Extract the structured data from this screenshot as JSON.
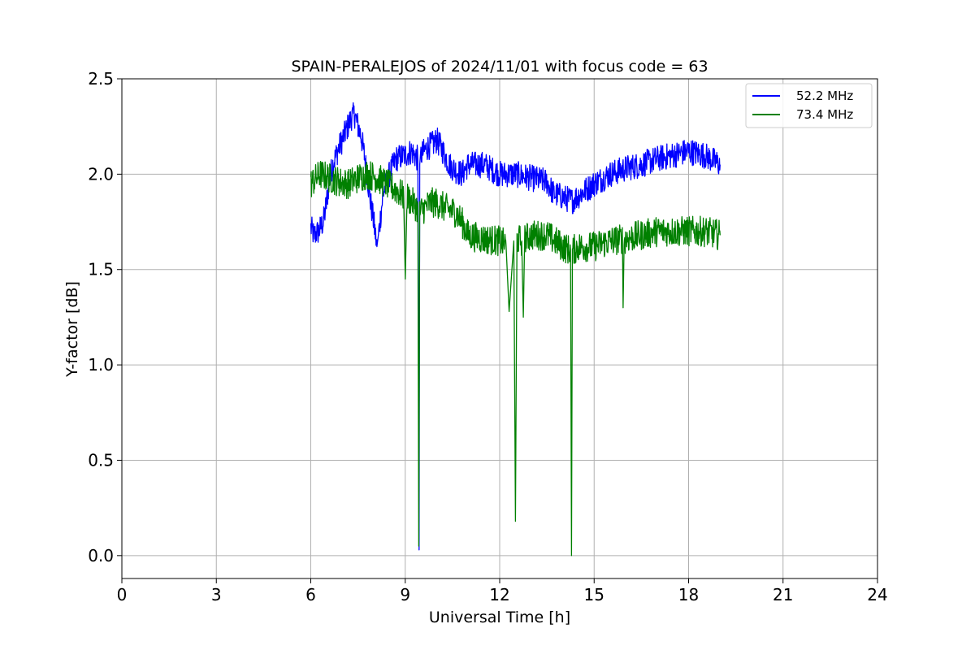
{
  "chart_data": {
    "type": "line",
    "title": "SPAIN-PERALEJOS of 2024/11/01 with focus code = 63",
    "xlabel": "Universal Time [h]",
    "ylabel": "Y-factor [dB]",
    "xlim": [
      0,
      24
    ],
    "ylim": [
      -0.12,
      2.5
    ],
    "xticks": [
      0,
      3,
      6,
      9,
      12,
      15,
      18,
      21,
      24
    ],
    "xtick_labels": [
      "0",
      "3",
      "6",
      "9",
      "12",
      "15",
      "18",
      "21",
      "24"
    ],
    "yticks": [
      0.0,
      0.5,
      1.0,
      1.5,
      2.0,
      2.5
    ],
    "ytick_labels": [
      "0.0",
      "0.5",
      "1.0",
      "1.5",
      "2.0",
      "2.5"
    ],
    "grid": true,
    "legend_position": "top-right",
    "series": [
      {
        "name": "52.2 MHz",
        "color": "#0000ff",
        "noise": 0.07,
        "x": [
          6.0,
          6.1,
          6.25,
          6.4,
          6.5,
          6.6,
          6.7,
          6.85,
          7.0,
          7.1,
          7.2,
          7.3,
          7.4,
          7.5,
          7.6,
          7.7,
          7.8,
          7.9,
          8.0,
          8.1,
          8.15,
          8.3,
          8.5,
          8.7,
          9.0,
          9.2,
          9.4,
          9.44,
          9.46,
          9.5,
          9.7,
          9.9,
          10.0,
          10.2,
          10.4,
          10.6,
          10.8,
          11.0,
          11.5,
          12.0,
          12.5,
          13.0,
          13.5,
          13.7,
          14.0,
          14.3,
          14.6,
          15.0,
          15.5,
          16.0,
          16.5,
          17.0,
          17.5,
          18.0,
          18.5,
          19.0
        ],
        "y": [
          1.72,
          1.68,
          1.7,
          1.75,
          1.85,
          1.98,
          2.05,
          2.12,
          2.18,
          2.22,
          2.26,
          2.3,
          2.31,
          2.25,
          2.2,
          2.1,
          1.98,
          1.85,
          1.75,
          1.62,
          1.68,
          1.9,
          2.0,
          2.08,
          2.1,
          2.12,
          2.08,
          0.03,
          2.05,
          2.1,
          2.14,
          2.16,
          2.18,
          2.12,
          2.05,
          2.02,
          2.0,
          2.05,
          2.05,
          2.0,
          2.0,
          1.98,
          1.96,
          1.9,
          1.88,
          1.86,
          1.9,
          1.95,
          2.0,
          2.03,
          2.05,
          2.08,
          2.1,
          2.12,
          2.1,
          2.05
        ]
      },
      {
        "name": "73.4 MHz",
        "color": "#008000",
        "noise": 0.08,
        "x": [
          6.0,
          6.3,
          6.6,
          6.9,
          7.2,
          7.5,
          7.8,
          8.1,
          8.4,
          8.7,
          8.95,
          9.0,
          9.05,
          9.3,
          9.4,
          9.43,
          9.46,
          9.6,
          9.8,
          10.0,
          10.3,
          10.6,
          10.8,
          11.0,
          11.5,
          12.0,
          12.2,
          12.3,
          12.45,
          12.5,
          12.55,
          12.7,
          12.75,
          12.8,
          13.0,
          13.5,
          14.0,
          14.25,
          14.28,
          14.31,
          14.5,
          15.0,
          15.5,
          15.9,
          15.92,
          15.95,
          16.5,
          17.0,
          17.5,
          18.0,
          18.5,
          19.0
        ],
        "y": [
          1.95,
          2.0,
          1.98,
          1.96,
          1.95,
          1.98,
          2.0,
          1.98,
          1.95,
          1.92,
          1.88,
          1.45,
          1.88,
          1.84,
          1.82,
          0.05,
          1.8,
          1.82,
          1.85,
          1.85,
          1.82,
          1.8,
          1.75,
          1.68,
          1.66,
          1.65,
          1.63,
          1.28,
          1.65,
          0.18,
          1.66,
          1.65,
          1.25,
          1.66,
          1.68,
          1.68,
          1.62,
          1.6,
          0.0,
          1.6,
          1.62,
          1.62,
          1.65,
          1.66,
          1.3,
          1.66,
          1.68,
          1.7,
          1.7,
          1.7,
          1.7,
          1.68
        ]
      }
    ]
  }
}
